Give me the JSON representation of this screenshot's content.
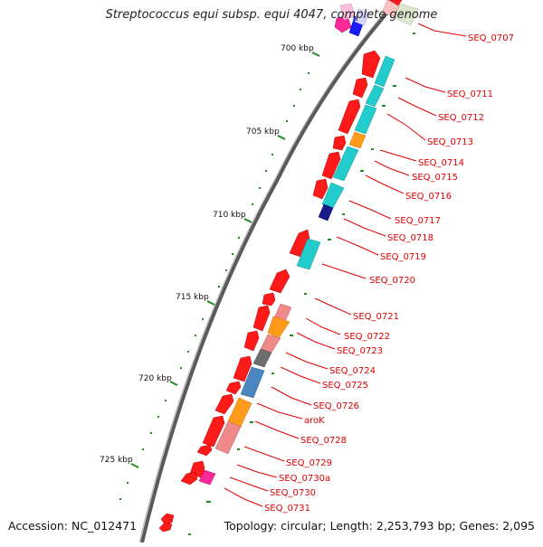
{
  "title": "Streptococcus equi subsp. equi 4047, complete genome",
  "footer": {
    "accession": "Accession: NC_012471",
    "summary": "Topology: circular; Length: 2,253,793 bp; Genes: 2,095"
  },
  "ruler_labels": [
    "700 kbp",
    "705 kbp",
    "710 kbp",
    "715 kbp",
    "720 kbp",
    "725 kbp"
  ],
  "gene_labels": [
    "SEQ_0707",
    "SEQ_0711",
    "SEQ_0712",
    "SEQ_0713",
    "SEQ_0714",
    "SEQ_0715",
    "SEQ_0716",
    "SEQ_0717",
    "SEQ_0718",
    "SEQ_0719",
    "SEQ_0720",
    "SEQ_0721",
    "SEQ_0722",
    "SEQ_0723",
    "SEQ_0724",
    "SEQ_0725",
    "SEQ_0726",
    "aroK",
    "SEQ_0728",
    "SEQ_0729",
    "SEQ_0730a",
    "SEQ_0730",
    "SEQ_0731"
  ],
  "colors": {
    "backbone": "#7a7a7a",
    "forward_gene": "#ff1a1a",
    "cog_cyan": "#22cccc",
    "cog_orange": "#ff9a1a",
    "cog_pink": "#f08a8a",
    "cog_gray": "#6e6e6e",
    "cog_steel": "#4a86c0",
    "cog_navy": "#1a1a8a",
    "cog_magenta": "#ff2a9a",
    "label_red": "#e00000",
    "tick_green": "#1f8a1f"
  }
}
